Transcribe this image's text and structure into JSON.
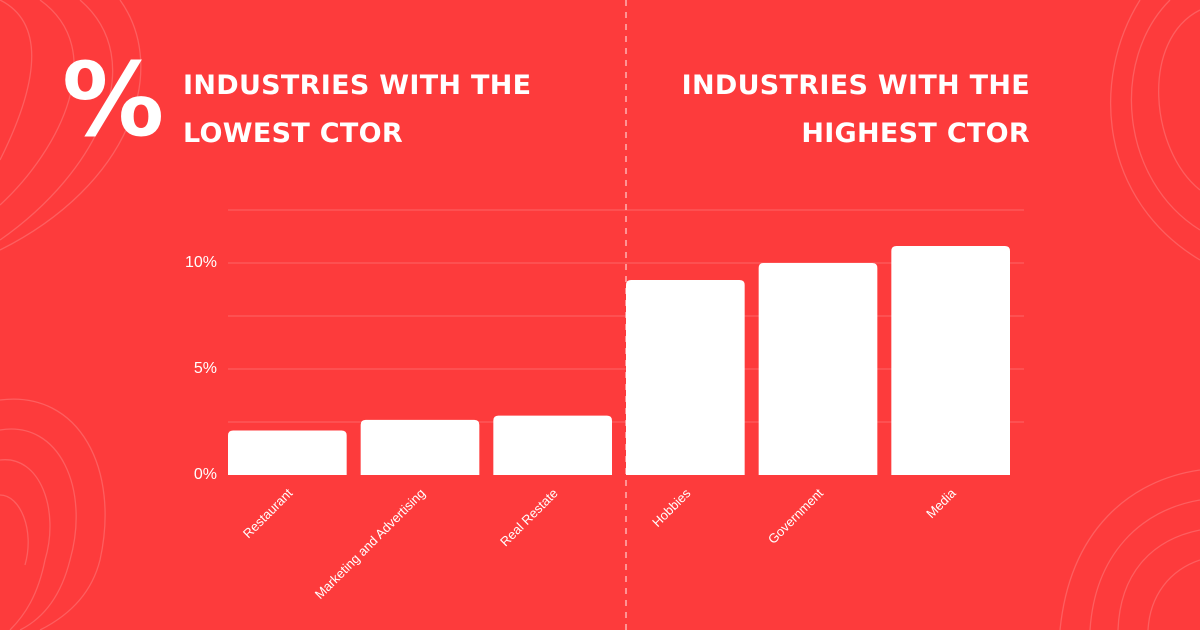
{
  "logo_symbol": "%",
  "panels": {
    "left_title": "INDUSTRIES WITH THE LOWEST CTOR",
    "right_title": "INDUSTRIES WITH THE HIGHEST CTOR"
  },
  "colors": {
    "background": "#fd3b3c",
    "bar": "#ffffff",
    "text": "#ffffff"
  },
  "chart_data": {
    "type": "bar",
    "categories": [
      "Restaurant",
      "Marketing and Advertising",
      "Real Restate",
      "Hobbies",
      "Government",
      "Media"
    ],
    "values": [
      2.1,
      2.6,
      2.8,
      9.2,
      10.0,
      10.8
    ],
    "y_ticks": [
      0,
      5,
      10
    ],
    "y_tick_labels": [
      "0%",
      "5%",
      "10%"
    ],
    "ylim": [
      0,
      12.5
    ],
    "grid": true,
    "xlabel": "",
    "ylabel": ""
  }
}
